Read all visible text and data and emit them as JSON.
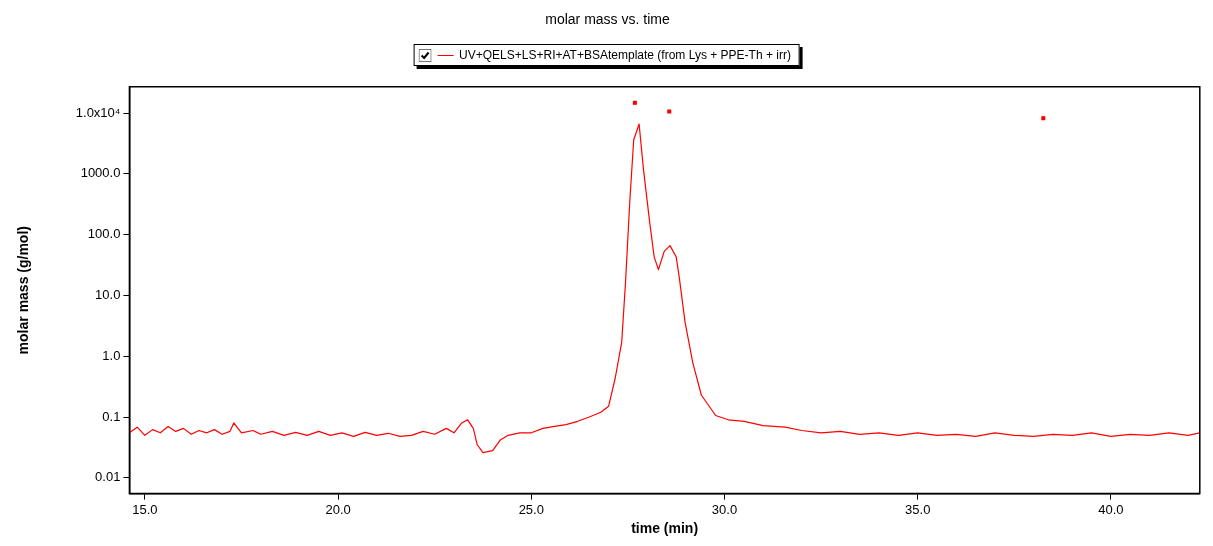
{
  "chart_data": {
    "type": "line",
    "title": "molar mass vs. time",
    "xlabel": "time (min)",
    "ylabel": "molar mass (g/mol)",
    "log": "y",
    "grid": false,
    "legend": "top",
    "xlim": [
      14.6,
      42.3
    ],
    "ylim": [
      0.0055,
      27000
    ],
    "xticks": [
      {
        "value": 15,
        "label": "15.0"
      },
      {
        "value": 20,
        "label": "20.0"
      },
      {
        "value": 25,
        "label": "25.0"
      },
      {
        "value": 30,
        "label": "30.0"
      },
      {
        "value": 35,
        "label": "35.0"
      },
      {
        "value": 40,
        "label": "40.0"
      }
    ],
    "yticks": [
      {
        "value": 0.01,
        "label": "0.01"
      },
      {
        "value": 0.1,
        "label": "0.1"
      },
      {
        "value": 1,
        "label": "1.0"
      },
      {
        "value": 10,
        "label": "10.0"
      },
      {
        "value": 100,
        "label": "100.0"
      },
      {
        "value": 1000,
        "label": "1000.0"
      },
      {
        "value": 10000,
        "label": "1.0x10⁴"
      }
    ],
    "series": [
      {
        "name": "UV+QELS+LS+RI+AT+BSAtemplate (from Lys + PPE-Th + irr)",
        "color": "#ff0000",
        "marker": "none",
        "x": [
          14.6,
          14.8,
          15.0,
          15.2,
          15.4,
          15.6,
          15.8,
          16.0,
          16.2,
          16.4,
          16.6,
          16.8,
          17.0,
          17.2,
          17.3,
          17.5,
          17.8,
          18.0,
          18.3,
          18.6,
          18.9,
          19.2,
          19.5,
          19.8,
          20.1,
          20.4,
          20.7,
          21.0,
          21.3,
          21.6,
          21.9,
          22.2,
          22.5,
          22.8,
          23.0,
          23.2,
          23.35,
          23.5,
          23.6,
          23.75,
          24.0,
          24.2,
          24.4,
          24.7,
          25.0,
          25.3,
          25.6,
          25.9,
          26.2,
          26.5,
          26.8,
          27.0,
          27.17,
          27.34,
          27.44,
          27.55,
          27.65,
          27.79,
          27.9,
          28.06,
          28.18,
          28.29,
          28.44,
          28.59,
          28.75,
          28.83,
          28.98,
          29.18,
          29.4,
          29.77,
          30.1,
          30.51,
          31.0,
          31.57,
          32.0,
          32.5,
          33.0,
          33.5,
          34.0,
          34.5,
          35.0,
          35.5,
          36.0,
          36.5,
          37.0,
          37.5,
          38.0,
          38.5,
          39.0,
          39.5,
          40.0,
          40.5,
          41.0,
          41.5,
          42.0,
          42.3
        ],
        "values": [
          0.055,
          0.068,
          0.05,
          0.062,
          0.055,
          0.07,
          0.058,
          0.065,
          0.052,
          0.06,
          0.055,
          0.062,
          0.052,
          0.058,
          0.08,
          0.055,
          0.06,
          0.052,
          0.058,
          0.05,
          0.056,
          0.05,
          0.058,
          0.05,
          0.055,
          0.048,
          0.056,
          0.05,
          0.054,
          0.048,
          0.05,
          0.058,
          0.052,
          0.065,
          0.055,
          0.08,
          0.09,
          0.065,
          0.035,
          0.026,
          0.028,
          0.042,
          0.05,
          0.055,
          0.055,
          0.065,
          0.07,
          0.075,
          0.085,
          0.1,
          0.12,
          0.15,
          0.43,
          1.7,
          17,
          360,
          3600,
          6600,
          1230,
          167,
          43,
          26.6,
          53,
          66,
          43,
          19.6,
          3.6,
          0.78,
          0.23,
          0.106,
          0.09,
          0.085,
          0.072,
          0.068,
          0.06,
          0.055,
          0.058,
          0.052,
          0.055,
          0.05,
          0.055,
          0.05,
          0.052,
          0.048,
          0.055,
          0.05,
          0.048,
          0.052,
          0.05,
          0.055,
          0.048,
          0.052,
          0.05,
          0.055,
          0.05,
          0.055
        ]
      },
      {
        "type": "scatter",
        "color": "#ff0000",
        "marker": "square",
        "x": [
          27.68,
          28.57,
          38.25
        ],
        "values": [
          14700,
          10600,
          8200
        ]
      }
    ]
  }
}
